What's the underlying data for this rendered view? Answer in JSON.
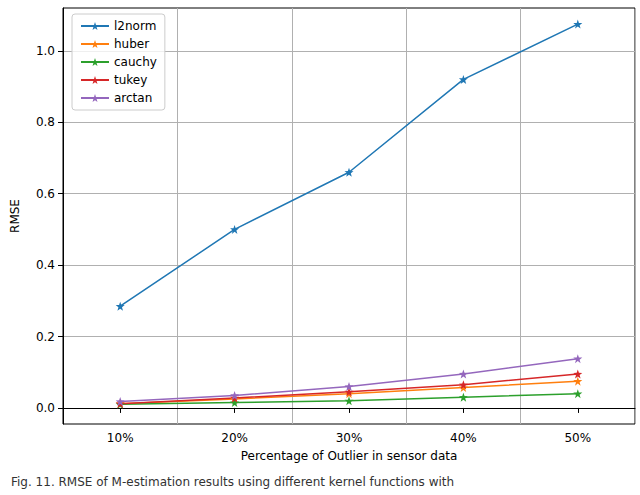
{
  "chart_data": {
    "type": "line",
    "caption": "Fig. 11. RMSE of M-estimation results using different kernel functions with",
    "x_label": "Percentage of Outlier in sensor data",
    "y_label": "RMSE",
    "categories": [
      "10%",
      "20%",
      "30%",
      "40%",
      "50%"
    ],
    "series": [
      {
        "name": "l2norm",
        "color": "#1f77b4",
        "values": [
          0.285,
          0.5,
          0.66,
          0.92,
          1.075
        ]
      },
      {
        "name": "huber",
        "color": "#ff7f0e",
        "values": [
          0.012,
          0.025,
          0.04,
          0.057,
          0.075
        ]
      },
      {
        "name": "cauchy",
        "color": "#2ca02c",
        "values": [
          0.01,
          0.015,
          0.02,
          0.03,
          0.04
        ]
      },
      {
        "name": "tukey",
        "color": "#d62728",
        "values": [
          0.012,
          0.028,
          0.045,
          0.065,
          0.095
        ]
      },
      {
        "name": "arctan",
        "color": "#9467bd",
        "values": [
          0.018,
          0.035,
          0.06,
          0.095,
          0.138
        ]
      }
    ],
    "ylim": [
      -0.045,
      1.12
    ],
    "yticks": [
      {
        "value": 0,
        "label": "0.0"
      },
      {
        "value": 0.2,
        "label": "0.2"
      },
      {
        "value": 0.4,
        "label": "0.4"
      },
      {
        "value": 0.6,
        "label": "0.6"
      },
      {
        "value": 0.8,
        "label": "0.8"
      },
      {
        "value": 1.0,
        "label": "1.0"
      }
    ],
    "grid": true,
    "legend": "upper left",
    "marker": "star"
  }
}
